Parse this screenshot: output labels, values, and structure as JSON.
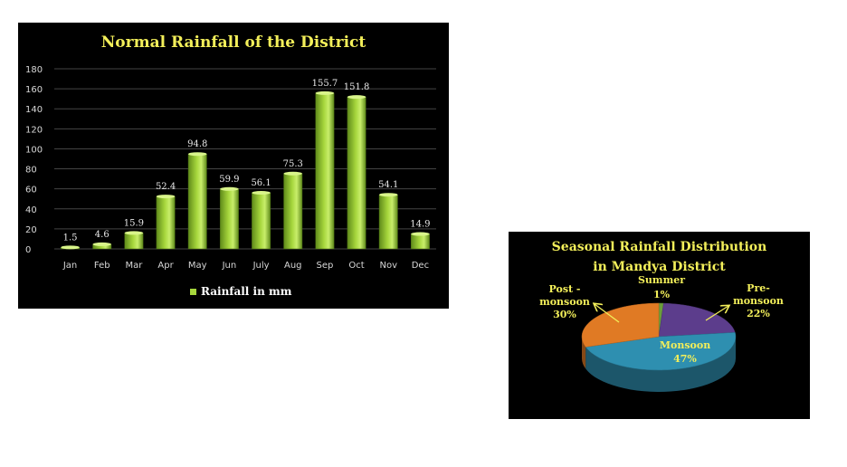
{
  "chart_data": [
    {
      "type": "bar",
      "title": "Normal Rainfall of the District",
      "categories": [
        "Jan",
        "Feb",
        "Mar",
        "Apr",
        "May",
        "Jun",
        "July",
        "Aug",
        "Sep",
        "Oct",
        "Nov",
        "Dec"
      ],
      "series": [
        {
          "name": "Rainfall in mm",
          "values": [
            1.5,
            4.6,
            15.9,
            52.4,
            94.8,
            59.9,
            56.1,
            75.3,
            155.7,
            151.8,
            54.1,
            14.9
          ]
        }
      ],
      "yticks": [
        "0",
        "20",
        "40",
        "60",
        "80",
        "100",
        "120",
        "140",
        "160",
        "180"
      ],
      "ylim": [
        0,
        180
      ],
      "grid": true,
      "legend": "bottom",
      "colors": {
        "bar": "#a6d63c",
        "background": "#000000",
        "title": "#f3ef5a"
      }
    },
    {
      "type": "pie",
      "title_line1": "Seasonal Rainfall Distribution",
      "title_line2": "in Mandya District",
      "slices": [
        {
          "label_line1": "Summer",
          "label_line2": "1%",
          "value": 1,
          "color": "#6b9e3a"
        },
        {
          "label_line1": "Pre-",
          "label_line2": "monsoon",
          "label_line3": "22%",
          "value": 22,
          "color": "#5c3d8c"
        },
        {
          "label_line1": "Monsoon",
          "label_line2": "47%",
          "value": 47,
          "color": "#2e8fb0"
        },
        {
          "label_line1": "Post -",
          "label_line2": "monsoon",
          "label_line3": "30%",
          "value": 30,
          "color": "#e07a24"
        }
      ],
      "legend": "none",
      "colors": {
        "label": "#f3ef5a",
        "background": "#000000",
        "title": "#f3ef5a"
      }
    }
  ]
}
